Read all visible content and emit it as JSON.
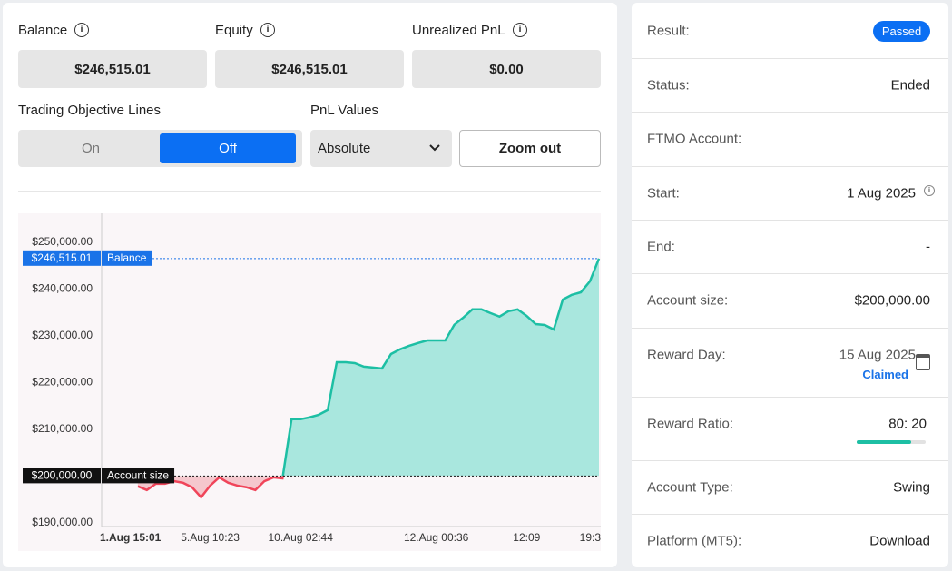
{
  "stats": [
    {
      "label": "Balance",
      "value": "$246,515.01"
    },
    {
      "label": "Equity",
      "value": "$246,515.01"
    },
    {
      "label": "Unrealized PnL",
      "value": "$0.00"
    }
  ],
  "controls": {
    "objective_lines_label": "Trading Objective Lines",
    "objective_on": "On",
    "objective_off": "Off",
    "pnl_label": "PnL Values",
    "pnl_selected": "Absolute",
    "zoom_out": "Zoom out"
  },
  "chart_data": {
    "type": "line",
    "color": "#1dbfa4",
    "fill": "#a9e7de",
    "negative_color": "#f0455a",
    "negative_fill": "#f5c7cd",
    "grid": false,
    "categories": [
      null,
      null,
      null,
      "1.Aug 15:01",
      null,
      null,
      null,
      null,
      null,
      null,
      null,
      null,
      "5.Aug 10:23",
      null,
      null,
      null,
      null,
      null,
      null,
      null,
      null,
      null,
      "10.Aug 02:44",
      null,
      null,
      null,
      null,
      null,
      null,
      null,
      null,
      null,
      null,
      null,
      null,
      null,
      null,
      "12.Aug 00:36",
      null,
      null,
      null,
      null,
      null,
      null,
      null,
      null,
      null,
      "12:09",
      null,
      null,
      null,
      null,
      null,
      null,
      null,
      "19:3"
    ],
    "values": [
      null,
      null,
      null,
      null,
      197800,
      197000,
      198350,
      198350,
      198900,
      198550,
      197600,
      195450,
      197950,
      199700,
      198550,
      197950,
      197600,
      197000,
      198900,
      199700,
      199500,
      212150,
      212150,
      212550,
      213100,
      214100,
      224350,
      224350,
      224150,
      223400,
      223200,
      223000,
      226100,
      227100,
      227850,
      228450,
      229000,
      229000,
      229000,
      232350,
      233900,
      235650,
      235650,
      234850,
      234100,
      235250,
      235650,
      234250,
      232500,
      232300,
      231350,
      237750,
      238750,
      239300,
      241650,
      246515.01
    ],
    "ylim": [
      189200,
      255800
    ],
    "yticks": [
      {
        "value": 190000,
        "label": "$190,000.00"
      },
      {
        "value": 200000,
        "label": "$200,000.00"
      },
      {
        "value": 210000,
        "label": "$210,000.00"
      },
      {
        "value": 220000,
        "label": "$220,000.00"
      },
      {
        "value": 230000,
        "label": "$230,000.00"
      },
      {
        "value": 240000,
        "label": "$240,000.00"
      },
      {
        "value": 250000,
        "label": "$250,000.00"
      }
    ],
    "reference_lines": [
      {
        "value": 246515.01,
        "label": "$246,515.01",
        "name": "Balance",
        "color": "#1a73e8"
      },
      {
        "value": 200000,
        "label": "$200,000.00",
        "name": "Account size",
        "color": "#111111"
      }
    ]
  },
  "details": [
    {
      "label": "Result:",
      "value": "Passed"
    },
    {
      "label": "Status:",
      "value": "Ended"
    },
    {
      "label": "FTMO Account:"
    },
    {
      "label": "Start:",
      "value": "1 Aug 2025"
    },
    {
      "label": "End:",
      "value": "-"
    },
    {
      "label": "Account size:",
      "value": "$200,000.00"
    },
    {
      "label": "Reward Day:",
      "value": "15 Aug 2025",
      "note": "Claimed"
    },
    {
      "label": "Reward Ratio:",
      "value": "80: 20"
    },
    {
      "label": "Account Type:",
      "value": "Swing"
    },
    {
      "label": "Platform (MT5):",
      "value": "Download"
    }
  ]
}
